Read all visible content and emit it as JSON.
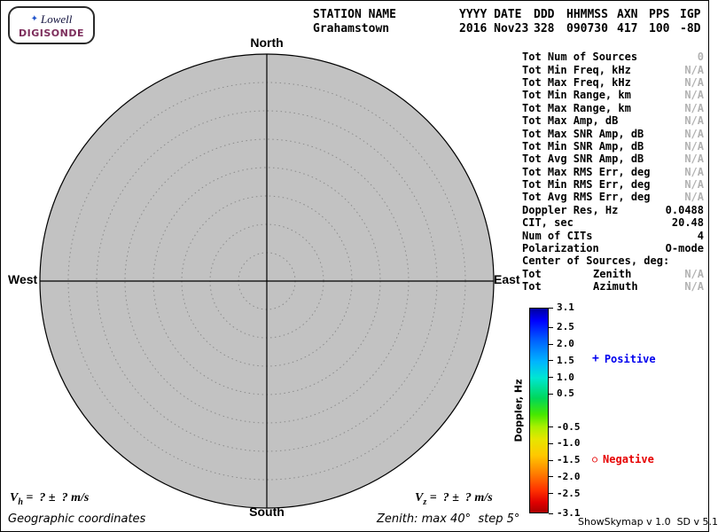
{
  "logo": {
    "star": "✦",
    "name": "Lowell",
    "product": "DIGISONDE"
  },
  "header": {
    "cols": [
      {
        "h": "STATION NAME",
        "v": "Grahamstown"
      },
      {
        "h": "YYYY DATE",
        "v": "2016 Nov23"
      },
      {
        "h": "DDD",
        "v": "328"
      },
      {
        "h": "HHMMSS",
        "v": "090730"
      },
      {
        "h": "AXN",
        "v": "417"
      },
      {
        "h": "PPS",
        "v": "100"
      },
      {
        "h": "IGP",
        "v": "-8D"
      }
    ]
  },
  "compass": {
    "north": "North",
    "south": "South",
    "east": "East",
    "west": "West"
  },
  "stats": [
    {
      "label": "Tot Num of Sources",
      "value": "0",
      "dim": true
    },
    {
      "label": "Tot Min Freq, kHz",
      "value": "N/A",
      "dim": true
    },
    {
      "label": "Tot Max Freq, kHz",
      "value": "N/A",
      "dim": true
    },
    {
      "label": "Tot Min Range, km",
      "value": "N/A",
      "dim": true
    },
    {
      "label": "Tot Max Range, km",
      "value": "N/A",
      "dim": true
    },
    {
      "label": "Tot Max Amp, dB",
      "value": "N/A",
      "dim": true
    },
    {
      "label": "Tot Max SNR Amp, dB",
      "value": "N/A",
      "dim": true
    },
    {
      "label": "Tot Min SNR Amp, dB",
      "value": "N/A",
      "dim": true
    },
    {
      "label": "Tot Avg SNR Amp, dB",
      "value": "N/A",
      "dim": true
    },
    {
      "label": "Tot Max RMS Err, deg",
      "value": "N/A",
      "dim": true
    },
    {
      "label": "Tot Min RMS Err, deg",
      "value": "N/A",
      "dim": true
    },
    {
      "label": "Tot Avg RMS Err, deg",
      "value": "N/A",
      "dim": true
    },
    {
      "label": "Doppler Res, Hz",
      "value": "0.0488",
      "dim": false
    },
    {
      "label": "CIT, sec",
      "value": "20.48",
      "dim": false
    },
    {
      "label": "Num of CITs",
      "value": "4",
      "dim": false
    },
    {
      "label": "Polarization",
      "value": "O-mode",
      "dim": false
    },
    {
      "label": "Center of Sources, deg:",
      "value": "",
      "dim": false
    },
    {
      "label": "Tot",
      "mid": "Zenith",
      "value": "N/A",
      "dim": true
    },
    {
      "label": "Tot",
      "mid": "Azimuth",
      "value": "N/A",
      "dim": true
    }
  ],
  "colorbar": {
    "title": "Doppler, Hz",
    "max": 3.1,
    "min": -3.1,
    "ticks": [
      "3.1",
      "2.5",
      "2.0",
      "1.5",
      "1.0",
      "0.5",
      "-0.5",
      "-1.0",
      "-1.5",
      "-2.0",
      "-2.5",
      "-3.1"
    ]
  },
  "legend": {
    "positive": {
      "symbol": "+",
      "label": "Positive",
      "color": "#0000ee"
    },
    "negative": {
      "symbol": "○",
      "label": "Negative",
      "color": "#e60000"
    }
  },
  "plot": {
    "type": "polar-skymap",
    "zenith_max_deg": 40,
    "zenith_step_deg": 5,
    "rings": 8,
    "sources_count": 0,
    "circle_fill": "#c2c2c2"
  },
  "footer": {
    "vh_prefix": "V",
    "vh_sub": "h",
    "vh_rest": " =  ? ±  ? m/s",
    "vz_prefix": "V",
    "vz_sub": "z",
    "vz_rest": " =  ? ±  ? m/s",
    "coordinates_note": "Geographic coordinates",
    "zenith_note": "Zenith: max 40°  step 5°",
    "version": "ShowSkymap v 1.0  SD v 5.1"
  }
}
